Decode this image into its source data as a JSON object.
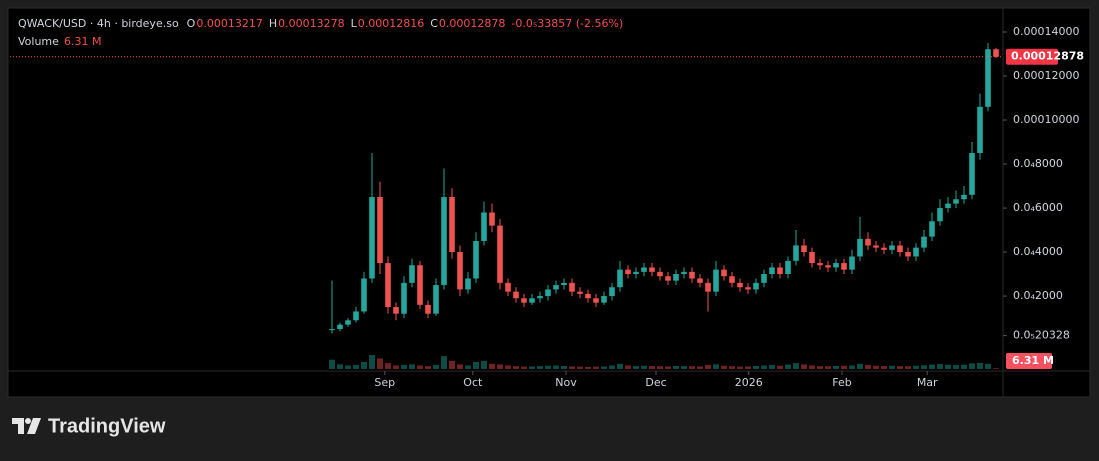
{
  "chart_data": {
    "type": "candlestick",
    "title": "QWACK/USD · 4h · birdeye.so",
    "change_label": "-0.0₅33857 (-2.56%)",
    "ohlc_letters": [
      "O",
      "H",
      "L",
      "C"
    ],
    "volume_title": "Volume",
    "volume_label": "6.31 M",
    "up_color": "#26a69a",
    "down_color": "#ef5350",
    "open": [
      4.5e-06,
      5e-06,
      7e-06,
      9e-06,
      1.3e-05,
      2.8e-05,
      6.5e-05,
      3.5e-05,
      1.5e-05,
      1.2e-05,
      2.6e-05,
      3.4e-05,
      1.6e-05,
      1.2e-05,
      2.5e-05,
      6.5e-05,
      4e-05,
      2.3e-05,
      2.8e-05,
      4.5e-05,
      5.8e-05,
      5.2e-05,
      2.6e-05,
      2.2e-05,
      1.9e-05,
      1.7e-05,
      1.9e-05,
      2e-05,
      2.3e-05,
      2.5e-05,
      2.6e-05,
      2.2e-05,
      2.1e-05,
      1.9e-05,
      1.7e-05,
      2e-05,
      2.4e-05,
      3.2e-05,
      3e-05,
      3.1e-05,
      3.3e-05,
      3.1e-05,
      2.9e-05,
      2.7e-05,
      3e-05,
      3.1e-05,
      2.8e-05,
      2.6e-05,
      2.2e-05,
      3.2e-05,
      2.9e-05,
      2.6e-05,
      2.4e-05,
      2.3e-05,
      2.6e-05,
      3e-05,
      3.3e-05,
      3e-05,
      3.6e-05,
      4.3e-05,
      4e-05,
      3.5e-05,
      3.4e-05,
      3.3e-05,
      3.5e-05,
      3.2e-05,
      3.8e-05,
      4.6e-05,
      4.3e-05,
      4.2e-05,
      4.1e-05,
      4.3e-05,
      4e-05,
      3.8e-05,
      4.2e-05,
      4.7e-05,
      5.4e-05,
      6e-05,
      6.2e-05,
      6.4e-05,
      6.6e-05,
      8.5e-05,
      0.000106,
      0.00013217
    ],
    "high": [
      2.7e-05,
      8e-06,
      1e-05,
      1.5e-05,
      3.1e-05,
      8.5e-05,
      7.2e-05,
      3.8e-05,
      1.7e-05,
      2.9e-05,
      3.7e-05,
      3.6e-05,
      1.8e-05,
      2.8e-05,
      7.8e-05,
      6.9e-05,
      4.3e-05,
      3.1e-05,
      4.9e-05,
      6.3e-05,
      6.2e-05,
      5.5e-05,
      2.8e-05,
      2.4e-05,
      2.1e-05,
      2.1e-05,
      2.2e-05,
      2.5e-05,
      2.7e-05,
      2.8e-05,
      2.8e-05,
      2.4e-05,
      2.3e-05,
      2.1e-05,
      2.2e-05,
      2.6e-05,
      3.6e-05,
      3.4e-05,
      3.3e-05,
      3.5e-05,
      3.5e-05,
      3.3e-05,
      3.1e-05,
      3.2e-05,
      3.3e-05,
      3.3e-05,
      3e-05,
      2.8e-05,
      3.6e-05,
      3.4e-05,
      3.1e-05,
      2.8e-05,
      2.6e-05,
      2.8e-05,
      3.2e-05,
      3.5e-05,
      3.5e-05,
      3.8e-05,
      5e-05,
      4.6e-05,
      4.2e-05,
      3.7e-05,
      3.6e-05,
      3.7e-05,
      3.7e-05,
      4.1e-05,
      5.6e-05,
      4.9e-05,
      4.5e-05,
      4.4e-05,
      4.5e-05,
      4.5e-05,
      4.2e-05,
      4.4e-05,
      5e-05,
      5.8e-05,
      6.4e-05,
      6.5e-05,
      6.8e-05,
      7e-05,
      9e-05,
      0.000112,
      0.000135,
      0.00013278
    ],
    "low": [
      3e-06,
      4e-06,
      6e-06,
      8e-06,
      1.2e-05,
      2.6e-05,
      3e-05,
      1.2e-05,
      9e-06,
      1e-05,
      2.4e-05,
      1.4e-05,
      1e-05,
      1.1e-05,
      2.3e-05,
      3.7e-05,
      2e-05,
      2.1e-05,
      2.6e-05,
      4.3e-05,
      4.9e-05,
      2.3e-05,
      2e-05,
      1.7e-05,
      1.5e-05,
      1.6e-05,
      1.7e-05,
      1.8e-05,
      2.1e-05,
      2.3e-05,
      2e-05,
      1.9e-05,
      1.7e-05,
      1.5e-05,
      1.6e-05,
      1.8e-05,
      2.2e-05,
      2.8e-05,
      2.8e-05,
      2.9e-05,
      2.9e-05,
      2.7e-05,
      2.5e-05,
      2.5e-05,
      2.8e-05,
      2.6e-05,
      2.4e-05,
      1.3e-05,
      2e-05,
      2.7e-05,
      2.4e-05,
      2.2e-05,
      2.1e-05,
      2.1e-05,
      2.4e-05,
      2.8e-05,
      2.8e-05,
      2.8e-05,
      3.4e-05,
      3.8e-05,
      3.3e-05,
      3.2e-05,
      3.1e-05,
      3.1e-05,
      3e-05,
      3e-05,
      3.6e-05,
      4.1e-05,
      4e-05,
      3.9e-05,
      3.9e-05,
      3.8e-05,
      3.6e-05,
      3.6e-05,
      4e-05,
      4.5e-05,
      5.2e-05,
      5.8e-05,
      6e-05,
      6.2e-05,
      6.4e-05,
      8.2e-05,
      0.000104,
      0.00012816
    ],
    "close": [
      5e-06,
      7e-06,
      9e-06,
      1.3e-05,
      2.8e-05,
      6.5e-05,
      3.5e-05,
      1.5e-05,
      1.2e-05,
      2.6e-05,
      3.4e-05,
      1.6e-05,
      1.2e-05,
      2.5e-05,
      6.5e-05,
      4e-05,
      2.3e-05,
      2.8e-05,
      4.5e-05,
      5.8e-05,
      5.2e-05,
      2.6e-05,
      2.2e-05,
      1.9e-05,
      1.7e-05,
      1.9e-05,
      2e-05,
      2.3e-05,
      2.5e-05,
      2.6e-05,
      2.2e-05,
      2.1e-05,
      1.9e-05,
      1.7e-05,
      2e-05,
      2.4e-05,
      3.2e-05,
      3e-05,
      3.1e-05,
      3.3e-05,
      3.1e-05,
      2.9e-05,
      2.7e-05,
      3e-05,
      3.1e-05,
      2.8e-05,
      2.6e-05,
      2.2e-05,
      3.2e-05,
      2.9e-05,
      2.6e-05,
      2.4e-05,
      2.3e-05,
      2.6e-05,
      3e-05,
      3.3e-05,
      3e-05,
      3.6e-05,
      4.3e-05,
      4e-05,
      3.5e-05,
      3.4e-05,
      3.3e-05,
      3.5e-05,
      3.2e-05,
      3.8e-05,
      4.6e-05,
      4.3e-05,
      4.2e-05,
      4.1e-05,
      4.3e-05,
      4e-05,
      3.8e-05,
      4.2e-05,
      4.7e-05,
      5.4e-05,
      6e-05,
      6.2e-05,
      6.4e-05,
      6.6e-05,
      8.5e-05,
      0.000106,
      0.00013217,
      0.00012878
    ],
    "volume": [
      80,
      40,
      30,
      35,
      60,
      120,
      90,
      50,
      30,
      35,
      40,
      30,
      25,
      35,
      110,
      70,
      40,
      30,
      60,
      70,
      45,
      40,
      30,
      25,
      20,
      22,
      25,
      28,
      30,
      26,
      22,
      20,
      18,
      20,
      22,
      30,
      45,
      30,
      25,
      28,
      26,
      24,
      22,
      26,
      25,
      24,
      22,
      35,
      40,
      28,
      24,
      20,
      22,
      26,
      30,
      35,
      28,
      38,
      50,
      40,
      30,
      25,
      24,
      26,
      28,
      30,
      45,
      35,
      28,
      26,
      28,
      25,
      24,
      28,
      32,
      38,
      42,
      36,
      34,
      36,
      48,
      52,
      45,
      6.31
    ],
    "xlim": [
      0,
      84
    ],
    "xticks": [
      {
        "value": 7.1,
        "label": "Sep"
      },
      {
        "value": 18.1,
        "label": "Oct"
      },
      {
        "value": 29.75,
        "label": "Nov"
      },
      {
        "value": 41,
        "label": "Dec"
      },
      {
        "value": 52.6,
        "label": "2026"
      },
      {
        "value": 64.25,
        "label": "Feb"
      },
      {
        "value": 74.9,
        "label": "Mar"
      }
    ],
    "ylim": [
      -1.36e-05,
      0.00015
    ],
    "yticks": [
      {
        "value": 2.0328e-06,
        "label": "0.0₅20328"
      },
      {
        "value": 2e-05,
        "label": "0.0₄2000"
      },
      {
        "value": 4e-05,
        "label": "0.0₄4000"
      },
      {
        "value": 6e-05,
        "label": "0.0₄6000"
      },
      {
        "value": 8e-05,
        "label": "0.0₄8000"
      },
      {
        "value": 0.0001,
        "label": "0.00010000"
      },
      {
        "value": 0.00012,
        "label": "0.00012000"
      },
      {
        "value": 0.00014,
        "label": "0.00014000"
      }
    ],
    "brand": "TradingView"
  }
}
